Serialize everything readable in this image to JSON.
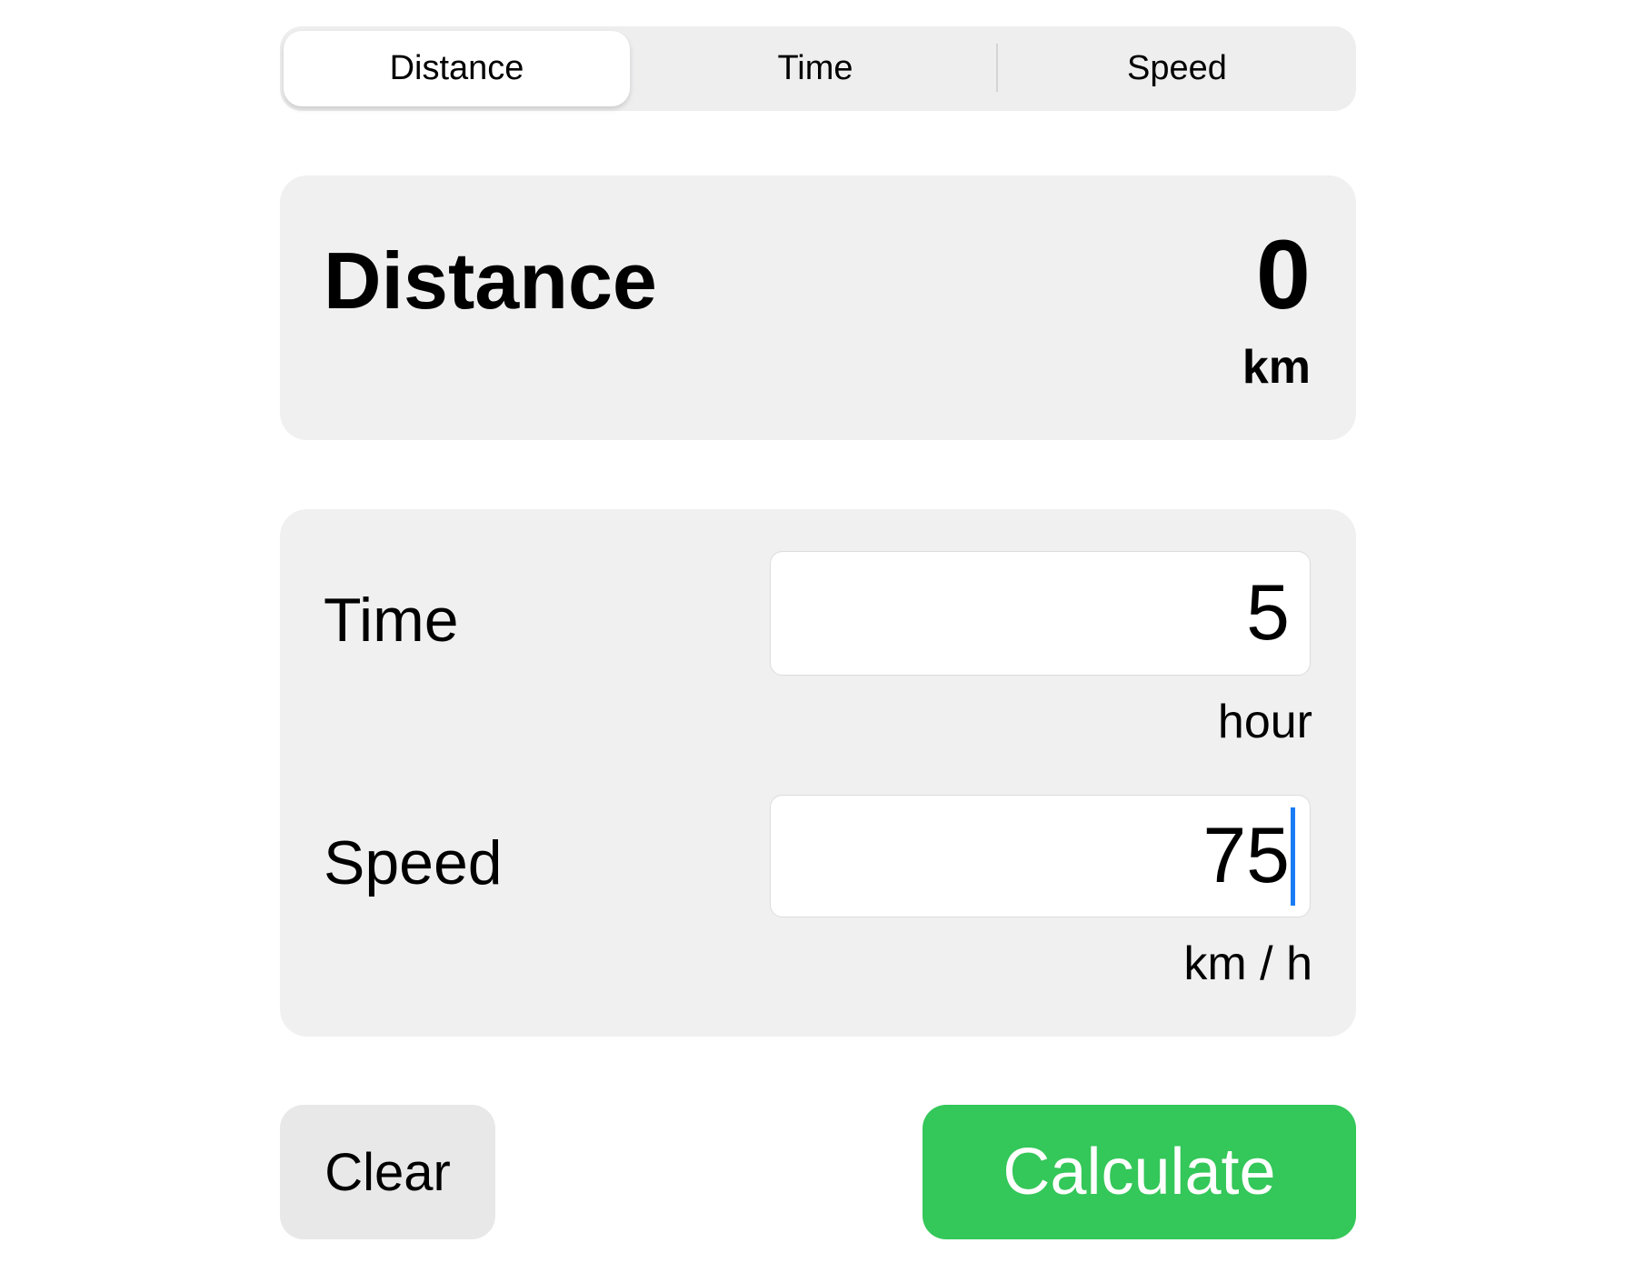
{
  "segmented": {
    "tabs": [
      {
        "label": "Distance",
        "selected": true
      },
      {
        "label": "Time",
        "selected": false
      },
      {
        "label": "Speed",
        "selected": false
      }
    ]
  },
  "result": {
    "title": "Distance",
    "value": "0",
    "unit": "km"
  },
  "inputs": {
    "time": {
      "label": "Time",
      "value": "5",
      "unit": "hour"
    },
    "speed": {
      "label": "Speed",
      "value": "75",
      "unit": "km / h"
    }
  },
  "buttons": {
    "clear": "Clear",
    "calculate": "Calculate"
  },
  "colors": {
    "accent": "#34c759",
    "caret": "#1a7cf5",
    "card": "#f0f0f0"
  }
}
